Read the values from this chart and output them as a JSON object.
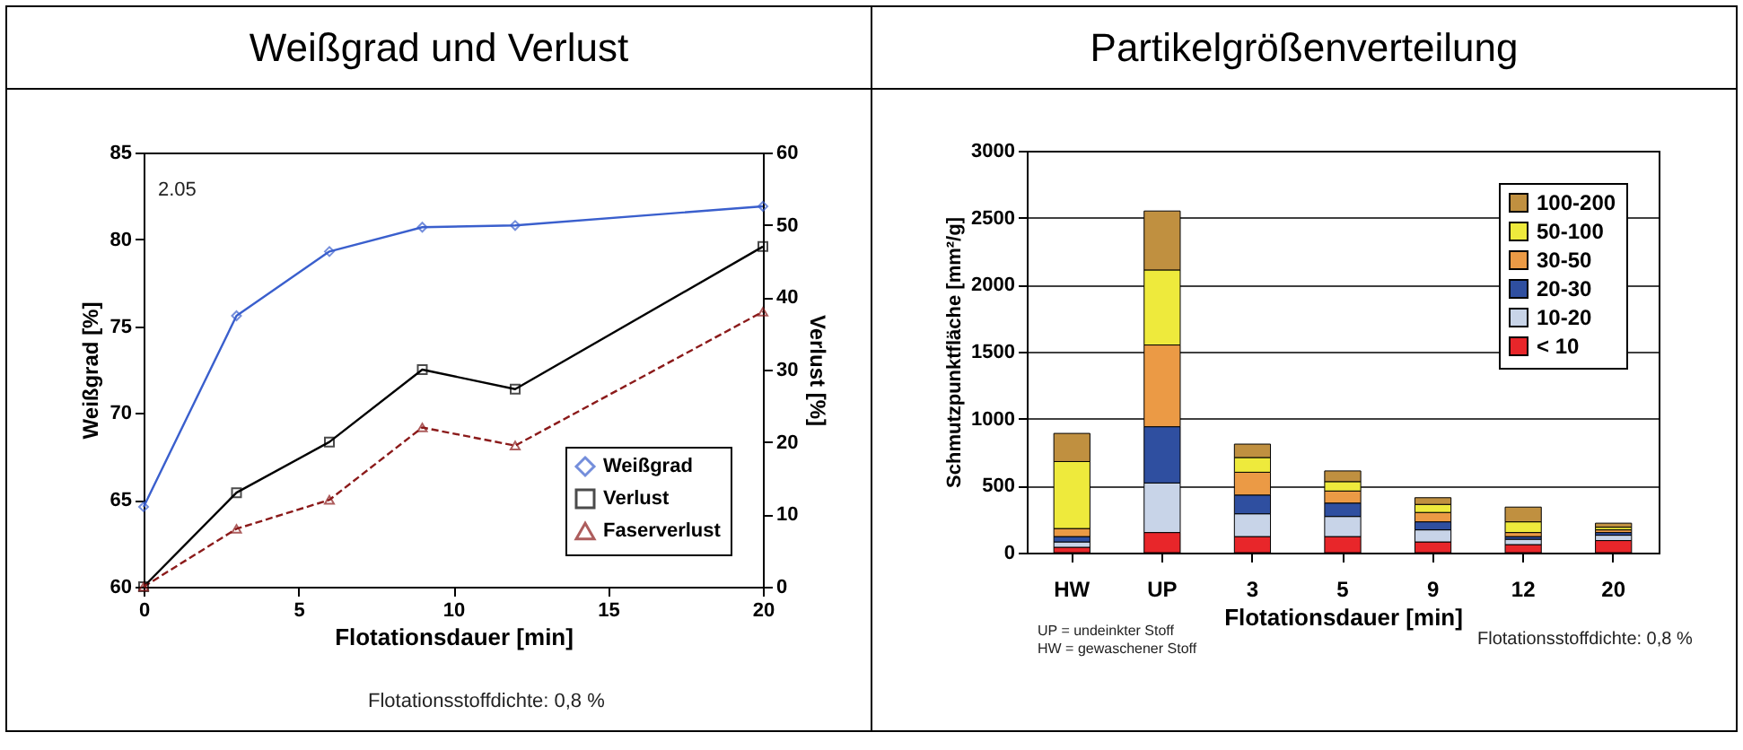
{
  "chart_data": [
    {
      "type": "line",
      "title": "Weißgrad und Verlust",
      "xlabel": "Flotationsdauer [min]",
      "ylabel": "Weißgrad [%]",
      "y2label": "Verlust [%]",
      "x": [
        0,
        3,
        6,
        9,
        12,
        20
      ],
      "series": [
        {
          "name": "Weißgrad",
          "color": "#3a5fcd",
          "marker": "diamond",
          "line_style": "solid",
          "values": [
            64.6,
            75.6,
            79.3,
            80.7,
            80.8,
            81.9
          ]
        },
        {
          "name": "Verlust",
          "color": "#000000",
          "marker": "square",
          "line_style": "solid",
          "axis": "y2",
          "values": [
            0,
            13,
            20,
            30,
            27.3,
            47
          ]
        },
        {
          "name": "Faserverlust",
          "color": "#8b1a1a",
          "marker": "triangle",
          "line_style": "dashed",
          "axis": "y2",
          "values": [
            0,
            8,
            12,
            22,
            19.5,
            38
          ]
        }
      ],
      "xlim": [
        0,
        20
      ],
      "xticks": [
        0,
        5,
        10,
        15,
        20
      ],
      "ylim": [
        60,
        85
      ],
      "yticks": [
        60,
        65,
        70,
        75,
        80,
        85
      ],
      "y2lim": [
        0,
        60
      ],
      "y2ticks": [
        0,
        10,
        20,
        30,
        40,
        50,
        60
      ],
      "grid": false,
      "legend": "bottom right",
      "annotations": [
        "2.05",
        "Flotationsstoffdichte: 0,8 %"
      ]
    },
    {
      "type": "bar",
      "stacked": true,
      "title": "Partikelgrößenverteilung",
      "xlabel": "Flotationsdauer [min]",
      "ylabel": "Schmutzpunktfläche [mm²/g]",
      "categories": [
        "HW",
        "UP",
        "3",
        "5",
        "9",
        "12",
        "20"
      ],
      "series": [
        {
          "name": "< 10",
          "color": "#e8262a",
          "values": [
            40,
            150,
            120,
            120,
            80,
            60,
            90
          ]
        },
        {
          "name": "10-20",
          "color": "#c8d4e8",
          "values": [
            40,
            370,
            170,
            150,
            90,
            40,
            40
          ]
        },
        {
          "name": "20-30",
          "color": "#2f4fa0",
          "values": [
            40,
            420,
            140,
            100,
            60,
            20,
            20
          ]
        },
        {
          "name": "30-50",
          "color": "#eb9a45",
          "values": [
            60,
            610,
            170,
            90,
            70,
            30,
            20
          ]
        },
        {
          "name": "50-100",
          "color": "#eeea3c",
          "values": [
            500,
            560,
            110,
            70,
            60,
            80,
            20
          ]
        },
        {
          "name": "100-200",
          "color": "#c09040",
          "values": [
            210,
            440,
            100,
            80,
            50,
            110,
            30
          ]
        }
      ],
      "ylim": [
        0,
        3000
      ],
      "yticks": [
        0,
        500,
        1000,
        1500,
        2000,
        2500,
        3000
      ],
      "grid": "y",
      "legend": "top right",
      "annotations": [
        "UP = undeinkter Stoff",
        "HW = gewaschener Stoff",
        "Flotationsstoffdichte: 0,8 %"
      ]
    }
  ]
}
